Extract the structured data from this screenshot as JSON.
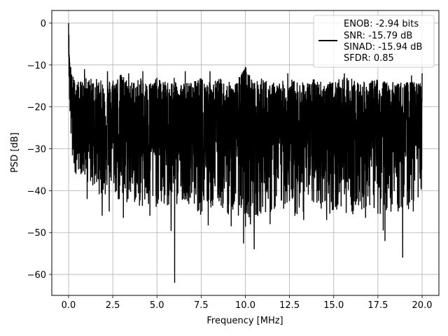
{
  "chart_data": {
    "type": "line",
    "title": "",
    "xlabel": "Frequency [MHz]",
    "ylabel": "PSD [dB]",
    "xlim": [
      -0.95,
      20.95
    ],
    "ylim": [
      -65,
      3
    ],
    "x_ticks": [
      0.0,
      2.5,
      5.0,
      7.5,
      10.0,
      12.5,
      15.0,
      17.5,
      20.0
    ],
    "x_tick_labels": [
      "0.0",
      "2.5",
      "5.0",
      "7.5",
      "10.0",
      "12.5",
      "15.0",
      "17.5",
      "20.0"
    ],
    "y_ticks": [
      0,
      -10,
      -20,
      -30,
      -40,
      -50,
      -60
    ],
    "y_tick_labels": [
      "0",
      "−10",
      "−20",
      "−30",
      "−40",
      "−50",
      "−60"
    ],
    "grid": true,
    "legend_position": "top-right",
    "legend": [
      "ENOB: -2.94 bits",
      "SNR: -15.79 dB",
      "SINAD: -15.94 dB",
      "SFDR: 0.85"
    ],
    "line_color": "#000000",
    "series": [
      {
        "x": [
          0.0,
          0.02,
          0.05,
          0.1,
          0.15,
          0.2,
          0.3,
          0.5,
          1.0,
          1.5,
          2.0,
          2.5,
          3.0,
          3.5,
          4.0,
          4.5,
          5.0,
          5.5,
          6.0,
          6.5,
          7.0,
          7.5,
          8.0,
          8.5,
          9.0,
          9.5,
          10.0,
          10.5,
          11.0,
          11.5,
          12.0,
          12.5,
          13.0,
          13.5,
          14.0,
          14.5,
          15.0,
          15.5,
          16.0,
          16.5,
          17.0,
          17.5,
          18.0,
          18.5,
          19.0,
          19.5,
          20.0
        ],
        "y": [
          0,
          -3,
          -10,
          -14,
          -20,
          -22,
          -24,
          -26,
          -25,
          -27,
          -26,
          -25,
          -27,
          -26,
          -28,
          -27,
          -26,
          -27,
          -28,
          -27,
          -26,
          -27,
          -26,
          -28,
          -27,
          -26,
          -27,
          -26,
          -27,
          -28,
          -27,
          -26,
          -27,
          -26,
          -28,
          -27,
          -26,
          -27,
          -28,
          -27,
          -26,
          -27,
          -26,
          -28,
          -27,
          -26,
          -27
        ],
        "envelope_top": [
          0,
          -3,
          -8,
          -10,
          -12,
          -12,
          -13,
          -14,
          -13,
          -13,
          -14,
          -13,
          -12,
          -14,
          -13,
          -14,
          -13,
          -14,
          -13,
          -14,
          -14,
          -13,
          -14,
          -13,
          -14,
          -14,
          -10,
          -14,
          -13,
          -14,
          -14,
          -13,
          -14,
          -14,
          -13,
          -14,
          -14,
          -13,
          -13,
          -14,
          -14,
          -13,
          -14,
          -14,
          -14,
          -14,
          -14
        ],
        "envelope_bottom": [
          -5,
          -15,
          -20,
          -25,
          -30,
          -34,
          -36,
          -35,
          -38,
          -40,
          -42,
          -40,
          -45,
          -43,
          -44,
          -46,
          -44,
          -45,
          -45,
          -42,
          -44,
          -46,
          -45,
          -44,
          -46,
          -45,
          -50,
          -47,
          -45,
          -46,
          -45,
          -44,
          -46,
          -45,
          -44,
          -45,
          -46,
          -45,
          -46,
          -45,
          -44,
          -46,
          -45,
          -46,
          -45,
          -44,
          -40
        ],
        "dips": [
          [
            0.42,
            -36.0
          ],
          [
            1.05,
            -42.0
          ],
          [
            1.9,
            -46.0
          ],
          [
            2.3,
            -45.0
          ],
          [
            3.1,
            -46.5
          ],
          [
            3.4,
            -44.5
          ],
          [
            4.2,
            -47.3
          ],
          [
            4.6,
            -46.0
          ],
          [
            5.8,
            -49.6
          ],
          [
            6.0,
            -62.0
          ],
          [
            7.3,
            -44.5
          ],
          [
            7.9,
            -48.3
          ],
          [
            9.2,
            -48.5
          ],
          [
            9.9,
            -52.6
          ],
          [
            10.5,
            -54.0
          ],
          [
            11.4,
            -48.0
          ],
          [
            12.8,
            -46.0
          ],
          [
            13.3,
            -47.0
          ],
          [
            14.6,
            -47.0
          ],
          [
            15.6,
            -46.0
          ],
          [
            16.8,
            -46.5
          ],
          [
            17.8,
            -49.5
          ],
          [
            17.9,
            -52.0
          ],
          [
            18.9,
            -56.0
          ],
          [
            19.5,
            -45.0
          ]
        ],
        "peaks": [
          [
            0.0,
            0.0
          ],
          [
            0.12,
            -10.5
          ],
          [
            0.9,
            -11.0
          ],
          [
            2.2,
            -11.5
          ],
          [
            3.4,
            -12.0
          ],
          [
            4.2,
            -11.5
          ],
          [
            6.6,
            -11.5
          ],
          [
            8.0,
            -11.5
          ],
          [
            10.0,
            -10.5
          ],
          [
            12.4,
            -12.0
          ],
          [
            15.6,
            -12.0
          ],
          [
            19.4,
            -12.5
          ],
          [
            20.0,
            -12.0
          ]
        ]
      }
    ]
  }
}
